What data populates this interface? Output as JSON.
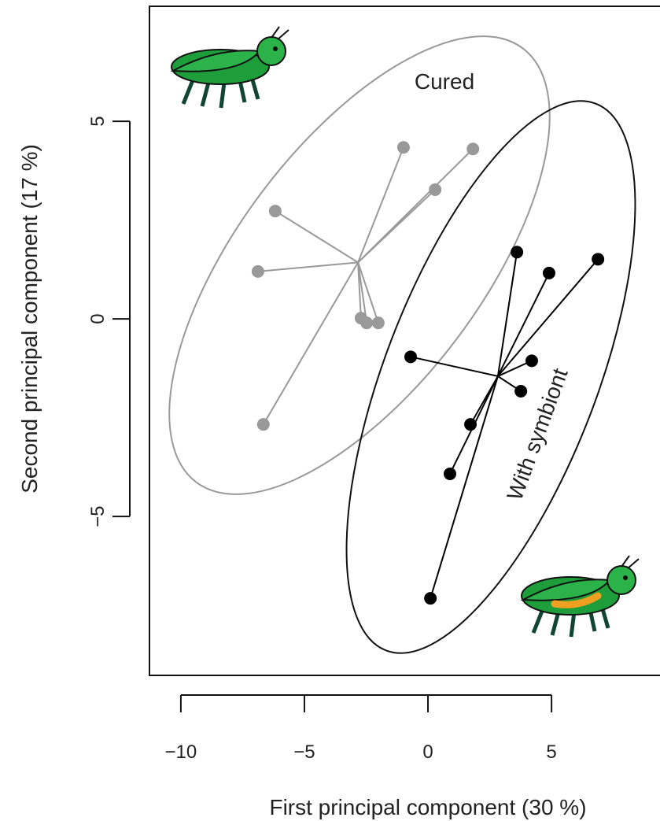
{
  "chart_data": {
    "type": "scatter",
    "x_label": "First principal component (30 %)",
    "y_label": "Second principal component (17 %)",
    "xlim": [
      -11.27,
      9.39
    ],
    "ylim": [
      -9.02,
      7.91
    ],
    "xticks": [
      {
        "value": -10,
        "label": "−10"
      },
      {
        "value": -5,
        "label": "−5"
      },
      0,
      5
    ],
    "yticks": [
      {
        "value": -5,
        "label": "−5"
      },
      0,
      5
    ],
    "series": [
      {
        "name": "Cured",
        "color": "#999999",
        "centroid": [
          -2.83,
          1.43
        ],
        "x": [
          -0.99,
          1.82,
          0.29,
          -6.18,
          -6.88,
          -2.71,
          -2.48,
          -2.01,
          -6.66
        ],
        "values": [
          4.34,
          4.3,
          3.27,
          2.73,
          1.2,
          0.02,
          -0.1,
          -0.1,
          -2.67
        ]
      },
      {
        "name": "With symbiont",
        "color": "#000000",
        "centroid": [
          2.83,
          -1.45
        ],
        "x": [
          3.6,
          4.9,
          6.88,
          -0.7,
          4.2,
          3.76,
          1.72,
          0.89,
          0.1
        ],
        "values": [
          1.69,
          1.16,
          1.51,
          -0.96,
          -1.06,
          -1.83,
          -2.67,
          -3.92,
          -7.07
        ]
      }
    ]
  }
}
